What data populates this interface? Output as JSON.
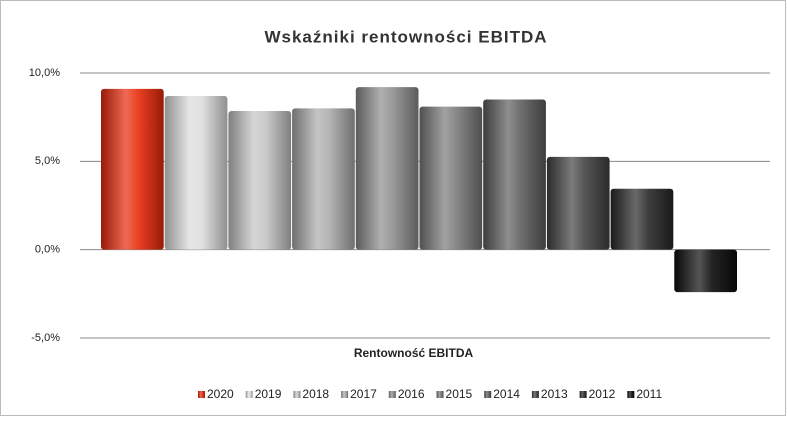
{
  "chart_data": {
    "type": "bar",
    "title": "Wskaźniki rentowności EBITDA",
    "categories": [
      "Rentowność EBITDA"
    ],
    "series": [
      {
        "name": "2020",
        "color": "#e82a0a",
        "values": [
          9.1
        ]
      },
      {
        "name": "2019",
        "color": "#dcdcdc",
        "values": [
          8.7
        ]
      },
      {
        "name": "2018",
        "color": "#c4c4c4",
        "values": [
          7.85
        ]
      },
      {
        "name": "2017",
        "color": "#ababab",
        "values": [
          8.0
        ]
      },
      {
        "name": "2016",
        "color": "#8c8c8c",
        "values": [
          9.2
        ]
      },
      {
        "name": "2015",
        "color": "#7a7a7a",
        "values": [
          8.1
        ]
      },
      {
        "name": "2014",
        "color": "#5e5e5e",
        "values": [
          8.5
        ]
      },
      {
        "name": "2013",
        "color": "#424242",
        "values": [
          5.25
        ]
      },
      {
        "name": "2012",
        "color": "#282828",
        "values": [
          3.45
        ]
      },
      {
        "name": "2011",
        "color": "#0c0c0c",
        "values": [
          -2.4
        ]
      }
    ],
    "ylim": [
      -5,
      10
    ],
    "yticks": [
      {
        "value": -5,
        "label": "-5,0%"
      },
      {
        "value": 0,
        "label": "0,0%"
      },
      {
        "value": 5,
        "label": "5,0%"
      },
      {
        "value": 10,
        "label": "10,0%"
      }
    ],
    "grid": true,
    "legend": "bottom"
  }
}
